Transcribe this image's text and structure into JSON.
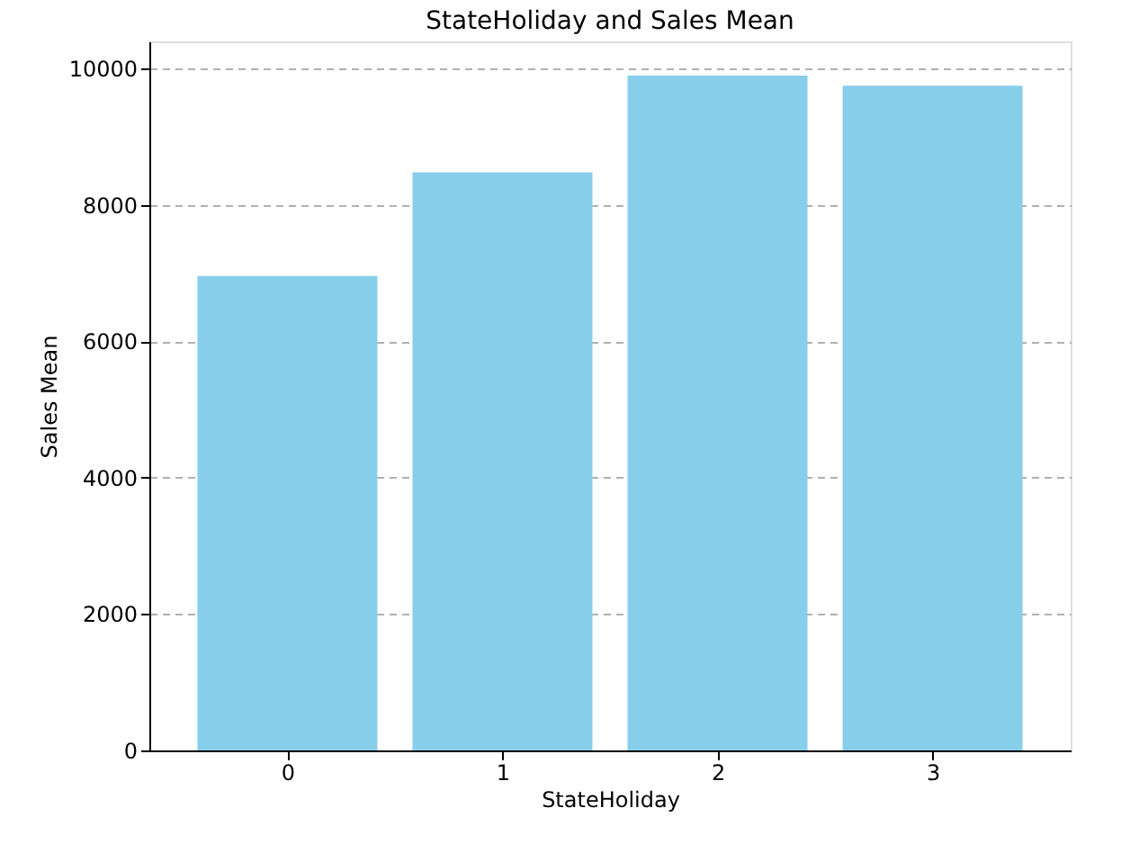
{
  "chart_data": {
    "type": "bar",
    "title": "StateHoliday and Sales Mean",
    "xlabel": "StateHoliday",
    "ylabel": "Sales Mean",
    "categories": [
      "0",
      "1",
      "2",
      "3"
    ],
    "values": [
      6960,
      8480,
      9900,
      9750
    ],
    "color": "#87ceeb",
    "ylim": [
      0,
      10400
    ],
    "yticks": [
      0,
      2000,
      4000,
      6000,
      8000,
      10000
    ],
    "grid": "y"
  }
}
